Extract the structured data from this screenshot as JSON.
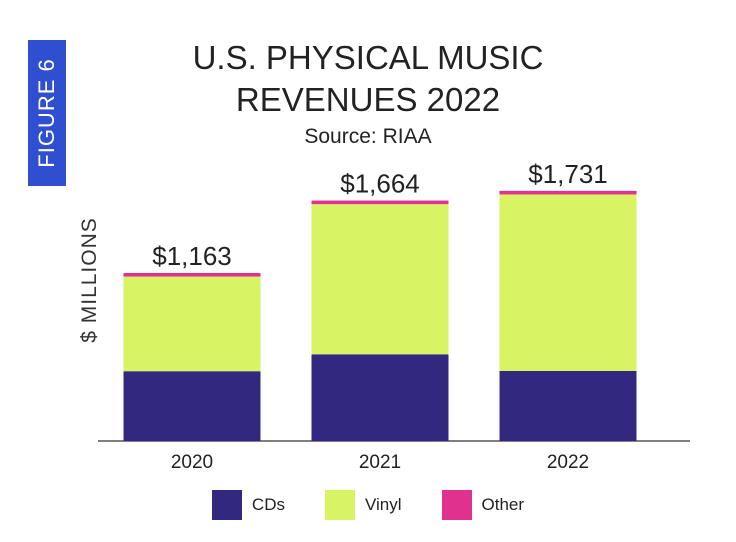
{
  "figure_tag": "FIGURE 6",
  "chart_data": {
    "type": "bar",
    "stacked": true,
    "title_line1": "U.S. PHYSICAL MUSIC",
    "title_line2": "REVENUES 2022",
    "subtitle": "Source: RIAA",
    "ylabel": "$ MILLIONS",
    "categories": [
      "2020",
      "2021",
      "2022"
    ],
    "totals_labels": [
      "$1,163",
      "$1,664",
      "$1,731"
    ],
    "ylim": [
      0,
      1800
    ],
    "series": [
      {
        "name": "CDs",
        "color": "#33287f",
        "values": [
          483,
          600,
          485
        ]
      },
      {
        "name": "Vinyl",
        "color": "#d8f463",
        "values": [
          655,
          1039,
          1221
        ]
      },
      {
        "name": "Other",
        "color": "#e0318f",
        "values": [
          25,
          25,
          25
        ]
      }
    ],
    "legend_position": "bottom",
    "grid": false
  }
}
